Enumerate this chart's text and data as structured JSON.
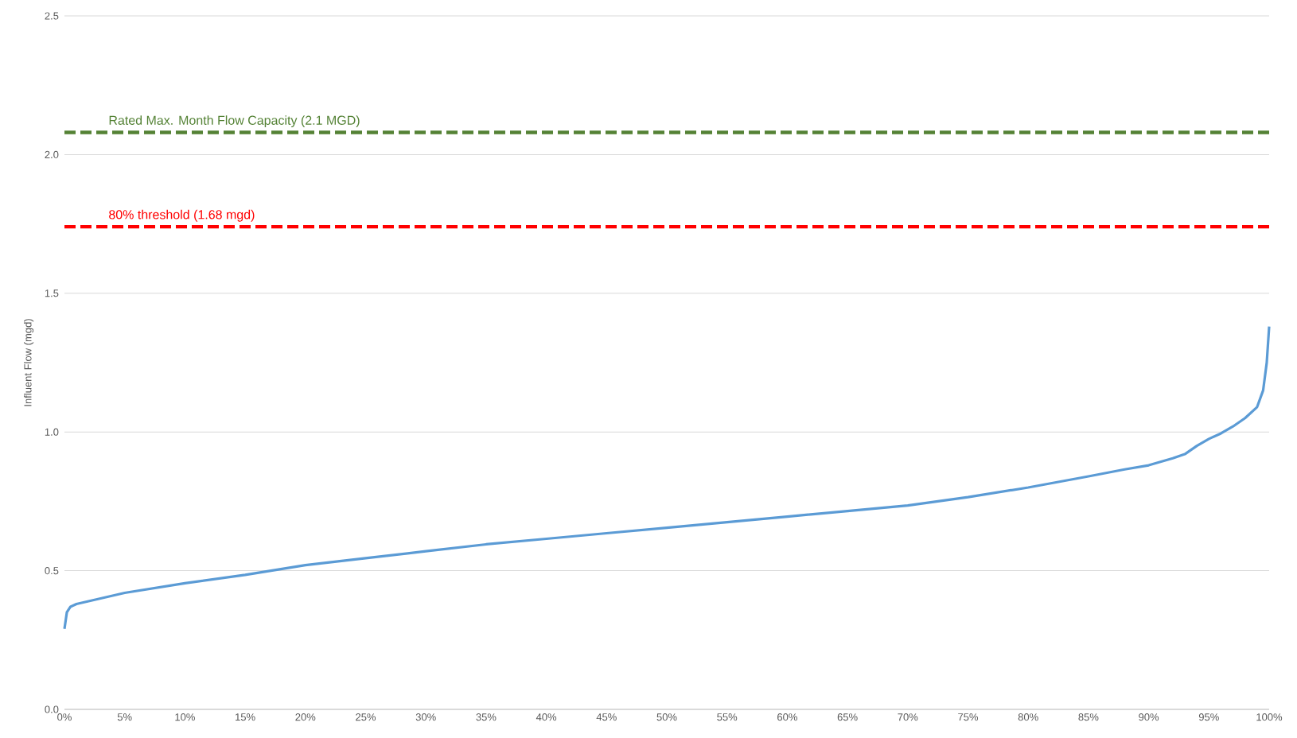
{
  "chart_data": {
    "type": "line",
    "ylabel": "Influent Flow (mgd)",
    "x": [
      0,
      0.2,
      0.5,
      1,
      2,
      5,
      10,
      15,
      20,
      25,
      30,
      35,
      40,
      45,
      50,
      55,
      60,
      65,
      70,
      75,
      80,
      85,
      88,
      90,
      92,
      93,
      94,
      95,
      96,
      97,
      98,
      99,
      99.5,
      99.8,
      100
    ],
    "series": [
      {
        "color": "#5b9bd5",
        "values": [
          0.29,
          0.35,
          0.37,
          0.38,
          0.39,
          0.42,
          0.455,
          0.485,
          0.52,
          0.545,
          0.57,
          0.595,
          0.615,
          0.635,
          0.655,
          0.675,
          0.695,
          0.715,
          0.735,
          0.765,
          0.8,
          0.84,
          0.865,
          0.88,
          0.905,
          0.92,
          0.95,
          0.975,
          0.995,
          1.02,
          1.05,
          1.09,
          1.15,
          1.25,
          1.38
        ]
      }
    ],
    "xlim": [
      0,
      100
    ],
    "ylim": [
      0,
      2.5
    ],
    "xticks": [
      {
        "value": 0,
        "label": "0%"
      },
      {
        "value": 5,
        "label": "5%"
      },
      {
        "value": 10,
        "label": "10%"
      },
      {
        "value": 15,
        "label": "15%"
      },
      {
        "value": 20,
        "label": "20%"
      },
      {
        "value": 25,
        "label": "25%"
      },
      {
        "value": 30,
        "label": "30%"
      },
      {
        "value": 35,
        "label": "35%"
      },
      {
        "value": 40,
        "label": "40%"
      },
      {
        "value": 45,
        "label": "45%"
      },
      {
        "value": 50,
        "label": "50%"
      },
      {
        "value": 55,
        "label": "55%"
      },
      {
        "value": 60,
        "label": "60%"
      },
      {
        "value": 65,
        "label": "65%"
      },
      {
        "value": 70,
        "label": "70%"
      },
      {
        "value": 75,
        "label": "75%"
      },
      {
        "value": 80,
        "label": "80%"
      },
      {
        "value": 85,
        "label": "85%"
      },
      {
        "value": 90,
        "label": "90%"
      },
      {
        "value": 95,
        "label": "95%"
      },
      {
        "value": 100,
        "label": "100%"
      }
    ],
    "yticks": [
      {
        "value": 0,
        "label": "0.0"
      },
      {
        "value": 0.5,
        "label": "0.5"
      },
      {
        "value": 1,
        "label": "1.0"
      },
      {
        "value": 1.5,
        "label": "1.5"
      },
      {
        "value": 2,
        "label": "2.0"
      },
      {
        "value": 2.5,
        "label": "2.5"
      }
    ],
    "grid": "y",
    "marker": "none",
    "line_style": "solid",
    "ref_lines": [
      {
        "axis": "y",
        "value": 2.08,
        "label": "Rated Max. Month Flow Capacity (2.1 MGD)",
        "color": "#548235",
        "line_style": "dashed"
      },
      {
        "axis": "y",
        "value": 1.74,
        "label": "80% threshold (1.68 mgd)",
        "color": "#ff0000",
        "line_style": "dashed"
      }
    ]
  }
}
